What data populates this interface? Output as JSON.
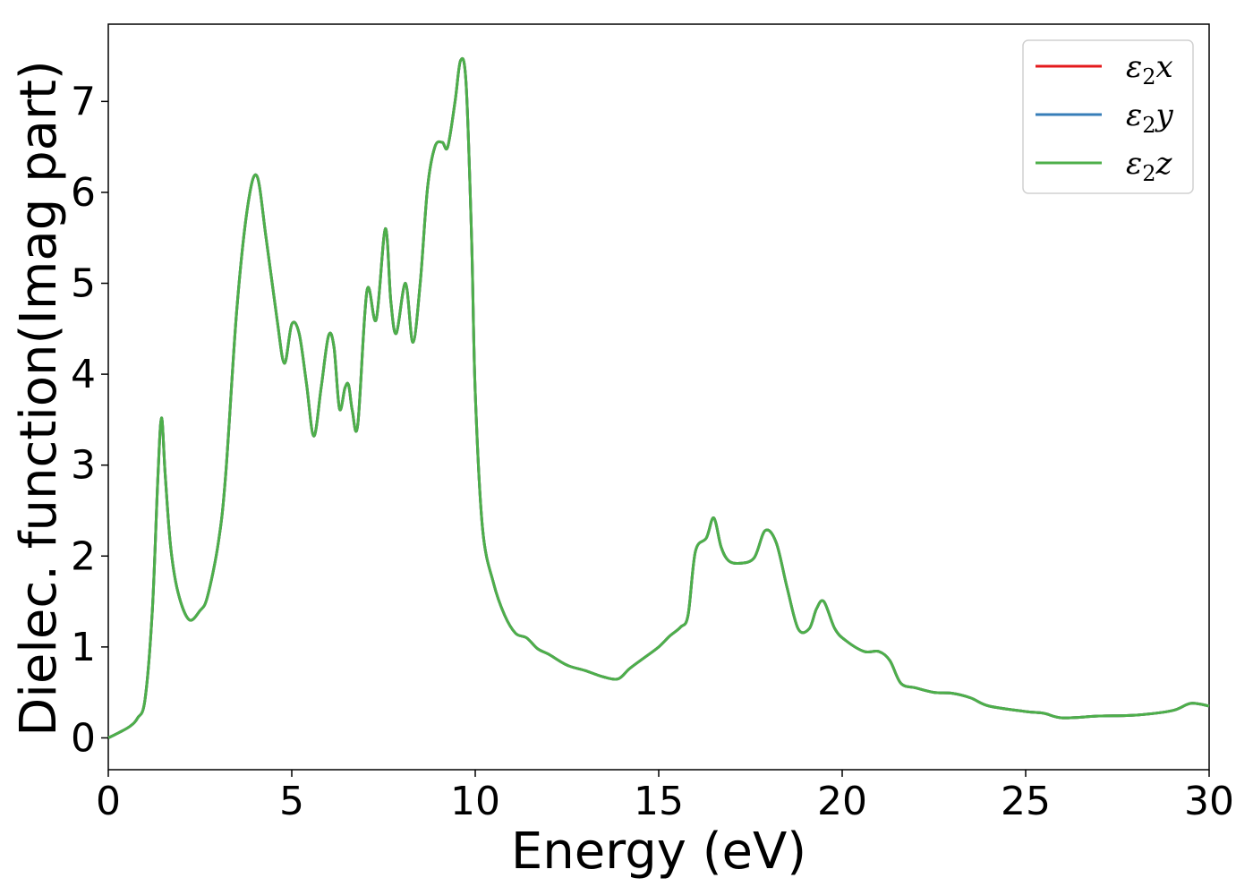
{
  "chart_data": {
    "type": "line",
    "title": "",
    "xlabel": "Energy (eV)",
    "ylabel": "Dielec. function(Imag part)",
    "xlim": [
      0,
      30
    ],
    "ylim": [
      -0.35,
      7.85
    ],
    "xticks": [
      "0",
      "5",
      "10",
      "15",
      "20",
      "25",
      "30"
    ],
    "yticks": [
      "0",
      "1",
      "2",
      "3",
      "4",
      "5",
      "6",
      "7"
    ],
    "grid": false,
    "legend_position": "top-right",
    "series": [
      {
        "name": "ε2x",
        "symbol": "ε",
        "sub": "2",
        "axis": "x",
        "color": "#e41a1c"
      },
      {
        "name": "ε2y",
        "symbol": "ε",
        "sub": "2",
        "axis": "y",
        "color": "#377eb8"
      },
      {
        "name": "ε2z",
        "symbol": "ε",
        "sub": "2",
        "axis": "z",
        "color": "#4daf4a"
      }
    ],
    "x": [
      0,
      0.3,
      0.6,
      0.8,
      1.0,
      1.2,
      1.35,
      1.45,
      1.55,
      1.7,
      1.9,
      2.2,
      2.5,
      2.7,
      3.0,
      3.2,
      3.5,
      3.8,
      4.05,
      4.3,
      4.6,
      4.8,
      5.0,
      5.2,
      5.4,
      5.6,
      5.8,
      6.0,
      6.15,
      6.3,
      6.45,
      6.55,
      6.65,
      6.8,
      7.05,
      7.3,
      7.55,
      7.7,
      7.85,
      8.1,
      8.3,
      8.5,
      8.7,
      8.9,
      9.1,
      9.25,
      9.45,
      9.6,
      9.75,
      9.9,
      10.0,
      10.2,
      10.5,
      10.8,
      11.1,
      11.4,
      11.7,
      12.0,
      12.5,
      13.0,
      13.5,
      13.9,
      14.2,
      14.6,
      15.0,
      15.3,
      15.6,
      15.8,
      16.0,
      16.3,
      16.5,
      16.7,
      16.9,
      17.2,
      17.6,
      17.9,
      18.2,
      18.5,
      18.8,
      19.1,
      19.3,
      19.5,
      19.8,
      20.1,
      20.6,
      21.0,
      21.3,
      21.6,
      22.0,
      22.5,
      23.0,
      23.5,
      24.0,
      25.0,
      25.5,
      26.0,
      27.0,
      28.0,
      29.0,
      29.5,
      30.0
    ],
    "y": [
      0.0,
      0.06,
      0.13,
      0.22,
      0.42,
      1.4,
      2.85,
      3.52,
      2.9,
      2.1,
      1.6,
      1.3,
      1.4,
      1.55,
      2.15,
      2.9,
      4.7,
      5.85,
      6.18,
      5.5,
      4.6,
      4.12,
      4.55,
      4.45,
      3.9,
      3.32,
      3.85,
      4.42,
      4.3,
      3.62,
      3.85,
      3.88,
      3.6,
      3.45,
      4.92,
      4.6,
      5.6,
      4.8,
      4.45,
      5.0,
      4.35,
      5.0,
      6.05,
      6.5,
      6.55,
      6.5,
      7.0,
      7.45,
      7.2,
      5.5,
      3.8,
      2.3,
      1.7,
      1.35,
      1.15,
      1.1,
      0.98,
      0.92,
      0.8,
      0.74,
      0.67,
      0.65,
      0.76,
      0.88,
      1.0,
      1.12,
      1.22,
      1.35,
      2.05,
      2.2,
      2.42,
      2.1,
      1.95,
      1.92,
      1.98,
      2.28,
      2.15,
      1.65,
      1.2,
      1.2,
      1.42,
      1.5,
      1.2,
      1.07,
      0.95,
      0.95,
      0.85,
      0.6,
      0.55,
      0.5,
      0.49,
      0.44,
      0.35,
      0.29,
      0.27,
      0.22,
      0.24,
      0.25,
      0.3,
      0.38,
      0.35
    ]
  }
}
